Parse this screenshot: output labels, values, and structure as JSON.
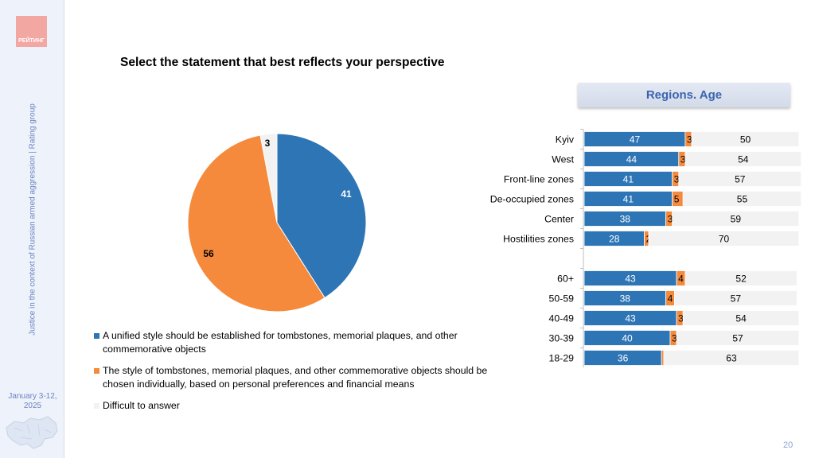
{
  "logo_text": "РЕЙТИНГ",
  "sidebar": {
    "caption": "Justice in the context of Russian armed aggression | Rating group",
    "date": "January 3-12, 2025"
  },
  "title": "Select the statement that best reflects your perspective",
  "regions_button": "Regions. Age",
  "page_number": "20",
  "colors": {
    "series1": "#2e75b6",
    "series2": "#f58a3c",
    "series3": "#f2f2f2",
    "accent": "#3b64b0"
  },
  "chart_data": [
    {
      "type": "pie",
      "values": [
        41,
        56,
        3
      ],
      "labels": [
        "41",
        "56",
        "3"
      ],
      "legend": [
        "A unified style should be established for tombstones, memorial plaques, and other commemorative objects",
        "The style of tombstones, memorial plaques, and other commemorative objects should be chosen individually, based on personal preferences and financial means",
        "Difficult to answer"
      ]
    },
    {
      "type": "bar",
      "orientation": "horizontal",
      "stacked": true,
      "xlim": [
        0,
        100
      ],
      "categories": [
        "Kyiv",
        "West",
        "Front-line zones",
        "De-occupied zones",
        "Center",
        "Hostilities zones",
        "",
        "60+",
        "50-59",
        "40-49",
        "30-39",
        "18-29"
      ],
      "series": [
        {
          "values": [
            47,
            44,
            41,
            41,
            38,
            28,
            null,
            43,
            38,
            43,
            40,
            36
          ]
        },
        {
          "values": [
            3,
            3,
            3,
            5,
            3,
            2,
            null,
            4,
            4,
            3,
            3,
            1
          ]
        },
        {
          "values": [
            50,
            54,
            57,
            55,
            59,
            70,
            null,
            52,
            57,
            54,
            57,
            63
          ]
        }
      ]
    }
  ]
}
